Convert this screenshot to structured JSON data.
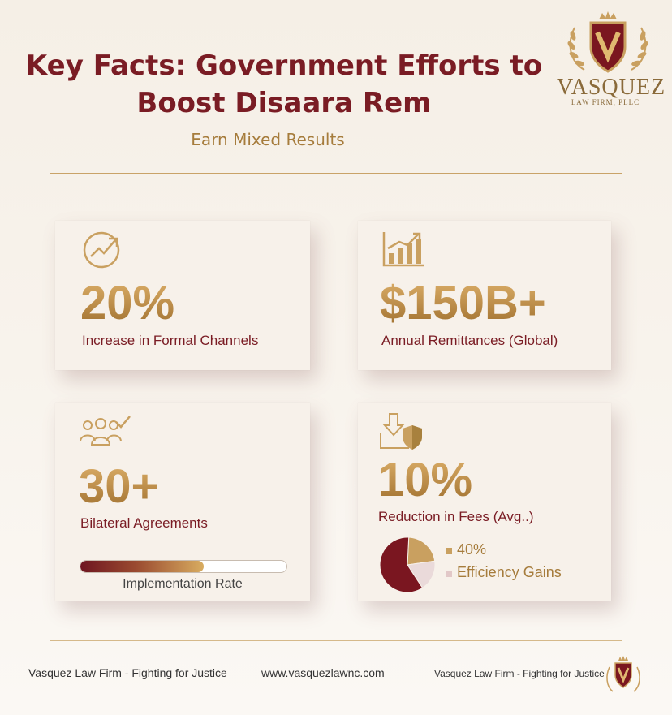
{
  "header": {
    "title": "Key Facts: Government Efforts to Boost Disaara Rem",
    "subtitle": "Earn Mixed Results"
  },
  "brand": {
    "name": "VASQUEZ",
    "subline": "LAW FIRM, PLLC"
  },
  "cards": [
    {
      "value": "20%",
      "label": "Increase in Formal Channels",
      "icon": "trend-up-circle-icon"
    },
    {
      "value": "$150B+",
      "label": "Annual Remittances (Global)",
      "icon": "bar-chart-icon"
    },
    {
      "value": "30+",
      "label": "Bilateral Agreements",
      "icon": "people-check-icon",
      "progress": {
        "label": "Implementation Rate",
        "fraction": 0.6
      }
    },
    {
      "value": "10%",
      "label": "Reduction in Fees (Avg..)",
      "icon": "download-shield-icon",
      "legend": [
        {
          "text": "40%",
          "color": "#c9a060"
        },
        {
          "text": "Efficiency Gains",
          "color": "#d9b8b8"
        }
      ],
      "pie": [
        {
          "fraction": 0.22,
          "color": "#c9a060"
        },
        {
          "fraction": 0.18,
          "color": "#eadada"
        },
        {
          "fraction": 0.6,
          "color": "#7a1620"
        }
      ]
    }
  ],
  "footer": {
    "left": "Vasquez Law Firm - Fighting for Justice",
    "center": "www.vasquezlawnc.com",
    "right": "Vasquez Law Firm - Fighting for Justice"
  },
  "colors": {
    "maroon": "#7a1c24",
    "gold": "#b3843f"
  }
}
